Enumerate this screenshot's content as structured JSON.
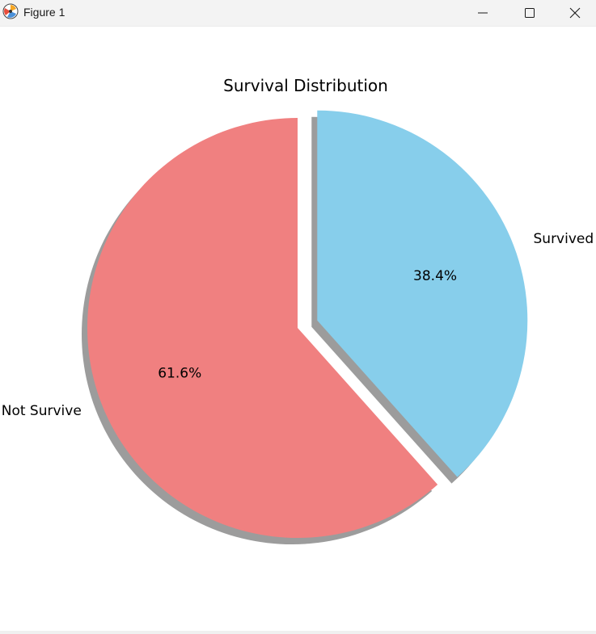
{
  "window": {
    "title": "Figure 1",
    "icons": {
      "app": "matplotlib-icon",
      "minimize": "minimize-icon",
      "maximize": "maximize-icon",
      "close": "close-icon"
    }
  },
  "colors": {
    "not_survive": "#f08080",
    "survived": "#87ceeb",
    "shadow": "#5a5a5a"
  },
  "chart_data": {
    "type": "pie",
    "title": "Survival Distribution",
    "labels": [
      "Not Survive",
      "Survived"
    ],
    "values": [
      61.6,
      38.4
    ],
    "pct_labels": [
      "61.6%",
      "38.4%"
    ],
    "colors": [
      "#f08080",
      "#87ceeb"
    ],
    "explode": [
      0,
      0.1
    ],
    "shadow": true,
    "startangle": 90,
    "counterclock": true
  }
}
